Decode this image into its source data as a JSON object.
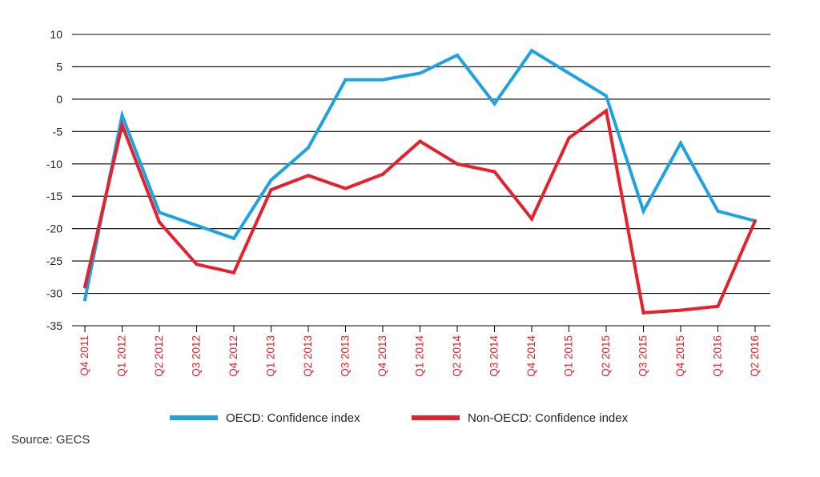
{
  "chart_data": {
    "type": "line",
    "categories": [
      "Q4 2011",
      "Q1 2012",
      "Q2 2012",
      "Q3 2012",
      "Q4 2012",
      "Q1 2013",
      "Q2 2013",
      "Q3 2013",
      "Q4 2013",
      "Q1 2014",
      "Q2 2014",
      "Q3 2014",
      "Q4 2014",
      "Q1 2015",
      "Q2 2015",
      "Q3 2015",
      "Q4 2015",
      "Q1 2016",
      "Q2 2016"
    ],
    "series": [
      {
        "name": "OECD: Confidence index",
        "color": "#1fa3e0",
        "values": [
          -31,
          -2.5,
          -17.5,
          -19.5,
          -21.5,
          -12.5,
          -7.5,
          3,
          3,
          4,
          6.8,
          -0.7,
          7.5,
          4,
          0.5,
          -17.3,
          -6.8,
          -17.3,
          -18.8
        ]
      },
      {
        "name": "Non-OECD: Confidence index",
        "color": "#e4212d",
        "values": [
          -29,
          -4,
          -19,
          -25.5,
          -26.8,
          -14,
          -11.8,
          -13.8,
          -11.6,
          -6.5,
          -10,
          -11.2,
          -18.5,
          -6,
          -1.8,
          -33,
          -32.6,
          -32,
          -18.8
        ]
      }
    ],
    "yticks": [
      10,
      5,
      0,
      -5,
      -10,
      -15,
      -20,
      -25,
      -30,
      -35
    ],
    "ylim": [
      -35,
      10
    ],
    "grid": true,
    "legend_position": "bottom-center",
    "tick_label_color": "#e4212d",
    "axis_color": "#000000"
  },
  "source": "Source: GECS"
}
